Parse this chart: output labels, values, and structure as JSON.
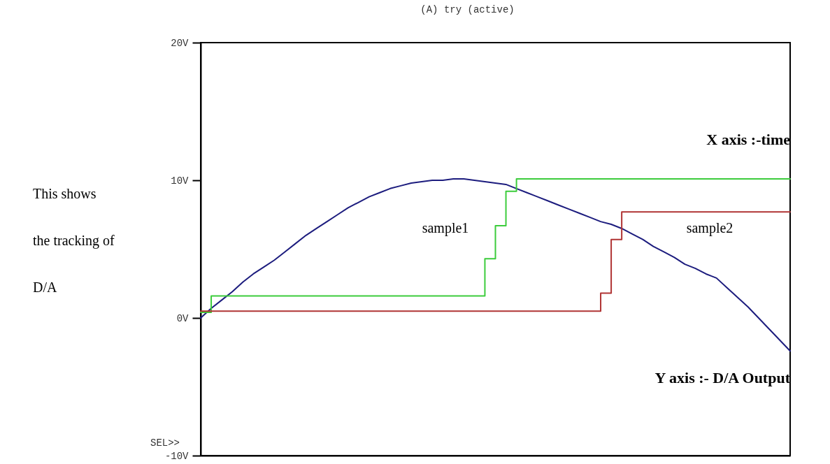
{
  "chart_data": {
    "type": "line",
    "title": "(A) try (active)",
    "categories": [
      null,
      null,
      null,
      null,
      null,
      null,
      null,
      null,
      null,
      null,
      null,
      null,
      null,
      null,
      null,
      null,
      null,
      null,
      null,
      null,
      null,
      null,
      null,
      null,
      null,
      null,
      null,
      null,
      null,
      null,
      null,
      null,
      null,
      null,
      null,
      null,
      null,
      null,
      null,
      null,
      null,
      null,
      null,
      null,
      null,
      null,
      null,
      null,
      null,
      null,
      null,
      null,
      null,
      null,
      null,
      null,
      null
    ],
    "series": [
      {
        "type": "line",
        "color": "#1c1c7e",
        "values": [
          0,
          0.7,
          1.3,
          1.9,
          2.6,
          3.2,
          3.7,
          4.2,
          4.8,
          5.4,
          6.0,
          6.5,
          7.0,
          7.5,
          8.0,
          8.4,
          8.8,
          9.1,
          9.4,
          9.6,
          9.8,
          9.9,
          10.0,
          10.0,
          10.1,
          10.1,
          10.0,
          9.9,
          9.8,
          9.7,
          9.4,
          9.1,
          8.8,
          8.5,
          8.2,
          7.9,
          7.6,
          7.3,
          7.0,
          6.8,
          6.5,
          6.1,
          5.7,
          5.2,
          4.8,
          4.4,
          3.9,
          3.6,
          3.2,
          2.9,
          2.2,
          1.5,
          0.8,
          0.0,
          -0.8,
          -1.6,
          -2.4
        ]
      },
      {
        "type": "step",
        "color": "#3ccc3c",
        "values": [
          0.4,
          1.6,
          1.6,
          1.6,
          1.6,
          1.6,
          1.6,
          1.6,
          1.6,
          1.6,
          1.6,
          1.6,
          1.6,
          1.6,
          1.6,
          1.6,
          1.6,
          1.6,
          1.6,
          1.6,
          1.6,
          1.6,
          1.6,
          1.6,
          1.6,
          1.6,
          1.6,
          4.3,
          6.7,
          9.2,
          10.1,
          10.1,
          10.1,
          10.1,
          10.1,
          10.1,
          10.1,
          10.1,
          10.1,
          10.1,
          10.1,
          10.1,
          10.1,
          10.1,
          10.1,
          10.1,
          10.1,
          10.1,
          10.1,
          10.1,
          10.1,
          10.1,
          10.1,
          10.1,
          10.1,
          10.1,
          10.1
        ]
      },
      {
        "type": "step",
        "color": "#b03434",
        "values": [
          0.5,
          0.5,
          0.5,
          0.5,
          0.5,
          0.5,
          0.5,
          0.5,
          0.5,
          0.5,
          0.5,
          0.5,
          0.5,
          0.5,
          0.5,
          0.5,
          0.5,
          0.5,
          0.5,
          0.5,
          0.5,
          0.5,
          0.5,
          0.5,
          0.5,
          0.5,
          0.5,
          0.5,
          0.5,
          0.5,
          0.5,
          0.5,
          0.5,
          0.5,
          0.5,
          0.5,
          0.5,
          0.5,
          1.8,
          5.7,
          7.7,
          7.7,
          7.7,
          7.7,
          7.7,
          7.7,
          7.7,
          7.7,
          7.7,
          7.7,
          7.7,
          7.7,
          7.7,
          7.7,
          7.7,
          7.7,
          7.7
        ]
      }
    ],
    "ylim": [
      -10,
      20
    ],
    "yticks": [
      {
        "value": 20,
        "label": "20V"
      },
      {
        "value": 10,
        "label": "10V"
      },
      {
        "value": 0,
        "label": "0V"
      },
      {
        "value": -10,
        "label": "-10V"
      }
    ],
    "tick_labels": "y",
    "annotations": [
      "X axis :-time",
      "Y axis :- D/A Output",
      "This  shows the tracking of D/A",
      "sample1",
      "sample2",
      "SEL>>"
    ]
  }
}
